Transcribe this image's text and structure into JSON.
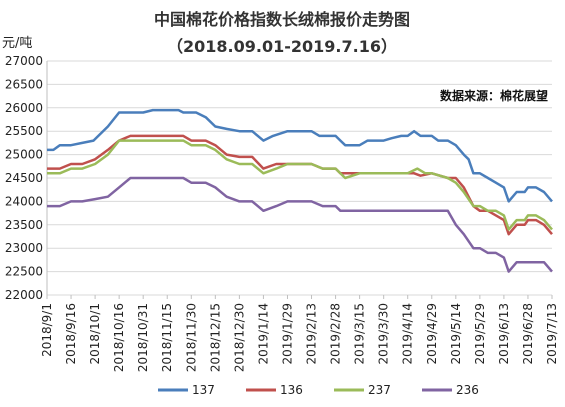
{
  "chart_data": {
    "type": "line",
    "title": "中国棉花价格指数长绒棉报价走势图",
    "subtitle": "（2018.09.01-2019.7.16）",
    "ylabel": "元/吨",
    "xlabel": "",
    "source": "数据来源：棉花展望",
    "ylim": [
      22000,
      27000
    ],
    "y_ticks": [
      22000,
      22500,
      23000,
      23500,
      24000,
      24500,
      25000,
      25500,
      26000,
      26500,
      27000
    ],
    "grid": "horizontal",
    "legend_position": "bottom",
    "x_tick_labels": [
      "2018/9/1",
      "2018/9/16",
      "2018/10/1",
      "2018/10/16",
      "2018/10/31",
      "2018/11/15",
      "2018/11/30",
      "2018/12/15",
      "2018/12/30",
      "2019/1/14",
      "2019/1/29",
      "2019/2/13",
      "2019/2/28",
      "2019/3/15",
      "2019/3/30",
      "2019/4/14",
      "2019/4/29",
      "2019/5/14",
      "2019/5/29",
      "2019/6/13",
      "2019/6/28",
      "2019/7/13"
    ],
    "series": [
      {
        "name": "137",
        "color": "#4a7ebb",
        "points": [
          [
            "2018/9/1",
            25100
          ],
          [
            "2018/9/5",
            25100
          ],
          [
            "2018/9/9",
            25200
          ],
          [
            "2018/9/16",
            25200
          ],
          [
            "2018/9/23",
            25250
          ],
          [
            "2018/9/30",
            25300
          ],
          [
            "2018/10/9",
            25600
          ],
          [
            "2018/10/16",
            25900
          ],
          [
            "2018/10/23",
            25900
          ],
          [
            "2018/10/31",
            25900
          ],
          [
            "2018/11/6",
            25950
          ],
          [
            "2018/11/15",
            25950
          ],
          [
            "2018/11/22",
            25950
          ],
          [
            "2018/11/25",
            25900
          ],
          [
            "2018/12/3",
            25900
          ],
          [
            "2018/12/9",
            25800
          ],
          [
            "2018/12/15",
            25600
          ],
          [
            "2018/12/22",
            25550
          ],
          [
            "2018/12/30",
            25500
          ],
          [
            "2019/1/7",
            25500
          ],
          [
            "2019/1/14",
            25300
          ],
          [
            "2019/1/20",
            25400
          ],
          [
            "2019/1/29",
            25500
          ],
          [
            "2019/2/5",
            25500
          ],
          [
            "2019/2/13",
            25500
          ],
          [
            "2019/2/18",
            25400
          ],
          [
            "2019/2/28",
            25400
          ],
          [
            "2019/3/3",
            25300
          ],
          [
            "2019/3/6",
            25200
          ],
          [
            "2019/3/15",
            25200
          ],
          [
            "2019/3/20",
            25300
          ],
          [
            "2019/3/25",
            25300
          ],
          [
            "2019/3/30",
            25300
          ],
          [
            "2019/4/4",
            25350
          ],
          [
            "2019/4/10",
            25400
          ],
          [
            "2019/4/14",
            25400
          ],
          [
            "2019/4/18",
            25500
          ],
          [
            "2019/4/22",
            25400
          ],
          [
            "2019/4/29",
            25400
          ],
          [
            "2019/5/3",
            25300
          ],
          [
            "2019/5/9",
            25300
          ],
          [
            "2019/5/14",
            25200
          ],
          [
            "2019/5/19",
            25000
          ],
          [
            "2019/5/22",
            24900
          ],
          [
            "2019/5/25",
            24600
          ],
          [
            "2019/5/29",
            24600
          ],
          [
            "2019/6/3",
            24500
          ],
          [
            "2019/6/8",
            24400
          ],
          [
            "2019/6/13",
            24300
          ],
          [
            "2019/6/16",
            24000
          ],
          [
            "2019/6/21",
            24200
          ],
          [
            "2019/6/26",
            24200
          ],
          [
            "2019/6/28",
            24300
          ],
          [
            "2019/7/3",
            24300
          ],
          [
            "2019/7/8",
            24200
          ],
          [
            "2019/7/13",
            24000
          ]
        ]
      },
      {
        "name": "136",
        "color": "#c0504d",
        "points": [
          [
            "2018/9/1",
            24700
          ],
          [
            "2018/9/9",
            24700
          ],
          [
            "2018/9/16",
            24800
          ],
          [
            "2018/9/23",
            24800
          ],
          [
            "2018/10/1",
            24900
          ],
          [
            "2018/10/9",
            25100
          ],
          [
            "2018/10/16",
            25300
          ],
          [
            "2018/10/23",
            25400
          ],
          [
            "2018/10/31",
            25400
          ],
          [
            "2018/11/15",
            25400
          ],
          [
            "2018/11/25",
            25400
          ],
          [
            "2018/11/30",
            25300
          ],
          [
            "2018/12/9",
            25300
          ],
          [
            "2018/12/15",
            25200
          ],
          [
            "2018/12/22",
            25000
          ],
          [
            "2018/12/30",
            24950
          ],
          [
            "2019/1/7",
            24950
          ],
          [
            "2019/1/14",
            24700
          ],
          [
            "2019/1/22",
            24800
          ],
          [
            "2019/1/29",
            24800
          ],
          [
            "2019/2/13",
            24800
          ],
          [
            "2019/2/20",
            24700
          ],
          [
            "2019/2/28",
            24700
          ],
          [
            "2019/3/3",
            24600
          ],
          [
            "2019/3/15",
            24600
          ],
          [
            "2019/3/30",
            24600
          ],
          [
            "2019/4/14",
            24600
          ],
          [
            "2019/4/18",
            24600
          ],
          [
            "2019/4/22",
            24550
          ],
          [
            "2019/4/29",
            24600
          ],
          [
            "2019/5/9",
            24500
          ],
          [
            "2019/5/14",
            24500
          ],
          [
            "2019/5/19",
            24300
          ],
          [
            "2019/5/25",
            23900
          ],
          [
            "2019/5/29",
            23800
          ],
          [
            "2019/6/3",
            23800
          ],
          [
            "2019/6/8",
            23700
          ],
          [
            "2019/6/13",
            23600
          ],
          [
            "2019/6/16",
            23300
          ],
          [
            "2019/6/21",
            23500
          ],
          [
            "2019/6/26",
            23500
          ],
          [
            "2019/6/28",
            23600
          ],
          [
            "2019/7/3",
            23600
          ],
          [
            "2019/7/8",
            23500
          ],
          [
            "2019/7/13",
            23300
          ]
        ]
      },
      {
        "name": "237",
        "color": "#9bbb59",
        "points": [
          [
            "2018/9/1",
            24600
          ],
          [
            "2018/9/9",
            24600
          ],
          [
            "2018/9/16",
            24700
          ],
          [
            "2018/9/23",
            24700
          ],
          [
            "2018/10/1",
            24800
          ],
          [
            "2018/10/9",
            25000
          ],
          [
            "2018/10/16",
            25300
          ],
          [
            "2018/10/31",
            25300
          ],
          [
            "2018/11/15",
            25300
          ],
          [
            "2018/11/25",
            25300
          ],
          [
            "2018/11/30",
            25200
          ],
          [
            "2018/12/9",
            25200
          ],
          [
            "2018/12/15",
            25100
          ],
          [
            "2018/12/22",
            24900
          ],
          [
            "2018/12/30",
            24800
          ],
          [
            "2019/1/7",
            24800
          ],
          [
            "2019/1/14",
            24600
          ],
          [
            "2019/1/22",
            24700
          ],
          [
            "2019/1/29",
            24800
          ],
          [
            "2019/2/13",
            24800
          ],
          [
            "2019/2/20",
            24700
          ],
          [
            "2019/2/28",
            24700
          ],
          [
            "2019/3/6",
            24500
          ],
          [
            "2019/3/15",
            24600
          ],
          [
            "2019/3/30",
            24600
          ],
          [
            "2019/4/14",
            24600
          ],
          [
            "2019/4/20",
            24700
          ],
          [
            "2019/4/25",
            24600
          ],
          [
            "2019/4/29",
            24600
          ],
          [
            "2019/5/9",
            24500
          ],
          [
            "2019/5/14",
            24400
          ],
          [
            "2019/5/19",
            24200
          ],
          [
            "2019/5/25",
            23900
          ],
          [
            "2019/5/29",
            23900
          ],
          [
            "2019/6/3",
            23800
          ],
          [
            "2019/6/8",
            23800
          ],
          [
            "2019/6/13",
            23700
          ],
          [
            "2019/6/16",
            23400
          ],
          [
            "2019/6/21",
            23600
          ],
          [
            "2019/6/26",
            23600
          ],
          [
            "2019/6/28",
            23700
          ],
          [
            "2019/7/3",
            23700
          ],
          [
            "2019/7/8",
            23600
          ],
          [
            "2019/7/13",
            23400
          ]
        ]
      },
      {
        "name": "236",
        "color": "#8064a2",
        "points": [
          [
            "2018/9/1",
            23900
          ],
          [
            "2018/9/9",
            23900
          ],
          [
            "2018/9/16",
            24000
          ],
          [
            "2018/9/23",
            24000
          ],
          [
            "2018/10/1",
            24050
          ],
          [
            "2018/10/9",
            24100
          ],
          [
            "2018/10/16",
            24300
          ],
          [
            "2018/10/23",
            24500
          ],
          [
            "2018/10/31",
            24500
          ],
          [
            "2018/11/15",
            24500
          ],
          [
            "2018/11/25",
            24500
          ],
          [
            "2018/11/30",
            24400
          ],
          [
            "2018/12/9",
            24400
          ],
          [
            "2018/12/15",
            24300
          ],
          [
            "2018/12/22",
            24100
          ],
          [
            "2018/12/30",
            24000
          ],
          [
            "2019/1/7",
            24000
          ],
          [
            "2019/1/14",
            23800
          ],
          [
            "2019/1/22",
            23900
          ],
          [
            "2019/1/29",
            24000
          ],
          [
            "2019/2/13",
            24000
          ],
          [
            "2019/2/20",
            23900
          ],
          [
            "2019/2/28",
            23900
          ],
          [
            "2019/3/3",
            23800
          ],
          [
            "2019/3/15",
            23800
          ],
          [
            "2019/3/30",
            23800
          ],
          [
            "2019/4/14",
            23800
          ],
          [
            "2019/4/29",
            23800
          ],
          [
            "2019/5/9",
            23800
          ],
          [
            "2019/5/14",
            23500
          ],
          [
            "2019/5/19",
            23300
          ],
          [
            "2019/5/25",
            23000
          ],
          [
            "2019/5/29",
            23000
          ],
          [
            "2019/6/3",
            22900
          ],
          [
            "2019/6/8",
            22900
          ],
          [
            "2019/6/13",
            22800
          ],
          [
            "2019/6/16",
            22500
          ],
          [
            "2019/6/21",
            22700
          ],
          [
            "2019/6/26",
            22700
          ],
          [
            "2019/6/28",
            22700
          ],
          [
            "2019/7/3",
            22700
          ],
          [
            "2019/7/8",
            22700
          ],
          [
            "2019/7/13",
            22500
          ]
        ]
      }
    ]
  }
}
